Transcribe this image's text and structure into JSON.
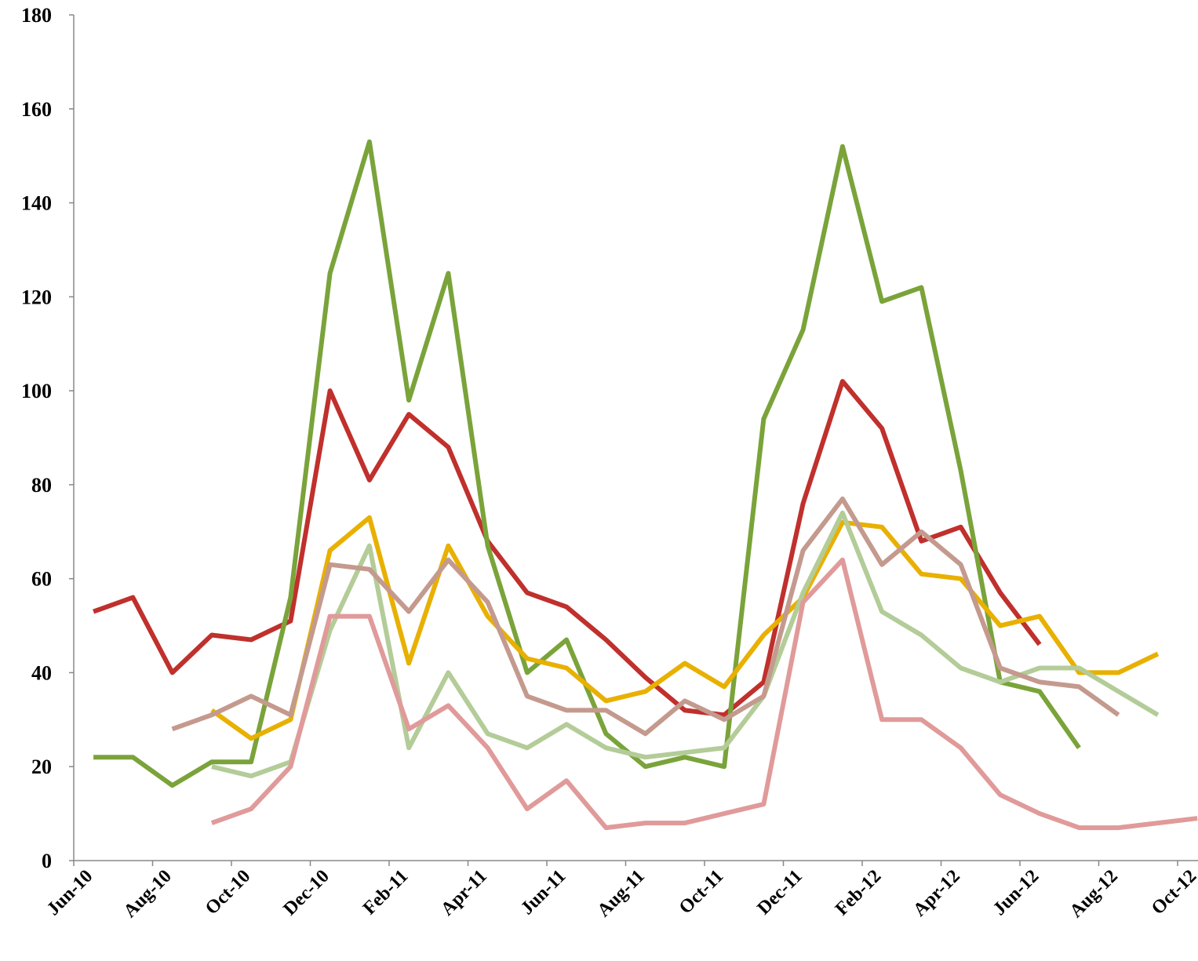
{
  "chart_data": {
    "type": "line",
    "categories": [
      "Jun-10",
      null,
      "Aug-10",
      null,
      "Oct-10",
      null,
      "Dec-10",
      null,
      "Feb-11",
      null,
      "Apr-11",
      null,
      "Jun-11",
      null,
      "Aug-11",
      null,
      "Oct-11",
      null,
      "Dec-11",
      null,
      "Feb-12",
      null,
      "Apr-12",
      null,
      "Jun-12",
      null,
      "Aug-12",
      null,
      "Oct-12"
    ],
    "series": [
      {
        "color": "#c0302c",
        "values": [
          53,
          56,
          40,
          48,
          47,
          51,
          100,
          81,
          95,
          88,
          68,
          57,
          54,
          47,
          39,
          32,
          31,
          38,
          76,
          102,
          92,
          68,
          71,
          57,
          46,
          null,
          null,
          null,
          null
        ]
      },
      {
        "color": "#7aa33a",
        "values": [
          22,
          22,
          16,
          21,
          21,
          56,
          125,
          153,
          98,
          125,
          67,
          40,
          47,
          27,
          20,
          22,
          20,
          94,
          113,
          152,
          119,
          122,
          83,
          38,
          36,
          24,
          null,
          null,
          null
        ]
      },
      {
        "color": "#e8b000",
        "values": [
          null,
          null,
          null,
          32,
          26,
          30,
          66,
          73,
          42,
          67,
          52,
          43,
          41,
          34,
          36,
          42,
          37,
          48,
          56,
          72,
          71,
          61,
          60,
          50,
          52,
          40,
          40,
          44,
          null
        ]
      },
      {
        "color": "#b3cc98",
        "values": [
          null,
          null,
          null,
          20,
          18,
          21,
          49,
          67,
          24,
          40,
          27,
          24,
          29,
          24,
          22,
          23,
          24,
          35,
          57,
          74,
          53,
          48,
          41,
          38,
          41,
          41,
          36,
          31,
          null
        ]
      },
      {
        "color": "#c49a8e",
        "values": [
          null,
          null,
          28,
          31,
          35,
          31,
          63,
          62,
          53,
          64,
          55,
          35,
          32,
          32,
          27,
          34,
          30,
          35,
          66,
          77,
          63,
          70,
          63,
          41,
          38,
          37,
          31,
          null,
          null
        ]
      },
      {
        "color": "#e09a9a",
        "values": [
          null,
          null,
          null,
          8,
          11,
          20,
          52,
          52,
          28,
          33,
          24,
          11,
          17,
          7,
          8,
          8,
          10,
          12,
          55,
          64,
          30,
          30,
          24,
          14,
          10,
          7,
          7,
          8,
          9
        ]
      }
    ],
    "ylim": [
      0,
      180
    ],
    "yticks": [
      0,
      20,
      40,
      60,
      80,
      100,
      120,
      140,
      160,
      180
    ]
  }
}
